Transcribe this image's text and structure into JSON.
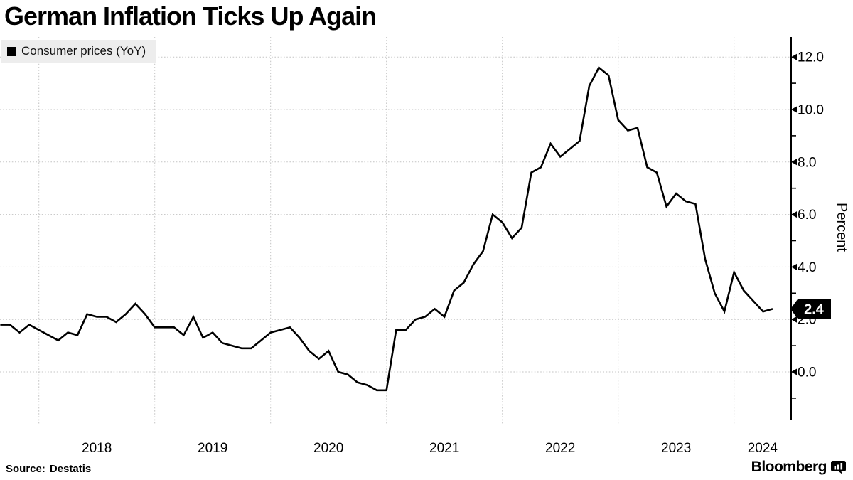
{
  "title": "German Inflation Ticks Up Again",
  "legend": {
    "label": "Consumer prices (YoY)",
    "marker_color": "#000000"
  },
  "y_axis": {
    "unit_label": "Percent",
    "tick_labels": [
      "0.0",
      "2.0",
      "4.0",
      "6.0",
      "8.0",
      "10.0",
      "12.0"
    ]
  },
  "x_axis": {
    "tick_labels": [
      "2018",
      "2019",
      "2020",
      "2021",
      "2022",
      "2023",
      "2024"
    ]
  },
  "badge": {
    "value": "2.4",
    "bg": "#000000",
    "text_color": "#ffffff"
  },
  "footer": {
    "source_label": "Source:",
    "source_value": "Destatis",
    "brand": "Bloomberg"
  },
  "colors": {
    "line": "#000000",
    "grid": "#c3c3c3",
    "legend_bg": "#ededed",
    "axis": "#000000"
  },
  "chart_data": {
    "type": "line",
    "title": "German Inflation Ticks Up Again",
    "xlabel": "",
    "ylabel": "Percent",
    "grid": "dotted",
    "legend_position": "top-left",
    "x_tick_labels": [
      "2018",
      "2019",
      "2020",
      "2021",
      "2022",
      "2023",
      "2024"
    ],
    "y_ticks": [
      0,
      2,
      4,
      6,
      8,
      10,
      12
    ],
    "y_minor_ticks": [
      -1,
      1,
      3,
      5,
      7,
      9,
      11
    ],
    "ylim": [
      -1.9,
      12.8
    ],
    "last_value": 2.4,
    "series": [
      {
        "name": "Consumer prices (YoY)",
        "frequency": "monthly",
        "start": "2017-08",
        "end": "2024-04",
        "values": [
          1.8,
          1.8,
          1.5,
          1.8,
          1.6,
          1.4,
          1.2,
          1.5,
          1.4,
          2.2,
          2.1,
          2.1,
          1.9,
          2.2,
          2.6,
          2.2,
          1.7,
          1.7,
          1.7,
          1.4,
          2.1,
          1.3,
          1.5,
          1.1,
          1.0,
          0.9,
          0.9,
          1.2,
          1.5,
          1.6,
          1.7,
          1.3,
          0.8,
          0.5,
          0.8,
          0.0,
          -0.1,
          -0.4,
          -0.5,
          -0.7,
          -0.7,
          1.6,
          1.6,
          2.0,
          2.1,
          2.4,
          2.1,
          3.1,
          3.4,
          4.1,
          4.6,
          6.0,
          5.7,
          5.1,
          5.5,
          7.6,
          7.8,
          8.7,
          8.2,
          8.5,
          8.8,
          10.9,
          11.6,
          11.3,
          9.6,
          9.2,
          9.3,
          7.8,
          7.6,
          6.3,
          6.8,
          6.5,
          6.4,
          4.3,
          3.0,
          2.3,
          3.8,
          3.1,
          2.7,
          2.3,
          2.4
        ]
      }
    ]
  }
}
